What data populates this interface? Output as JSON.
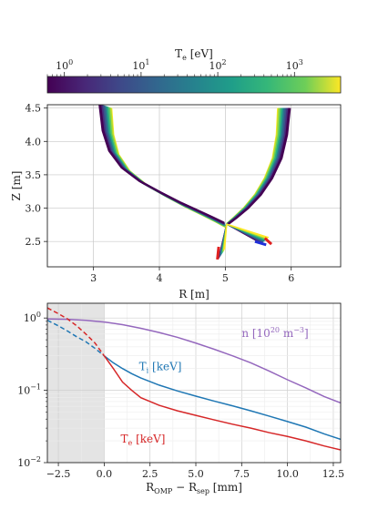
{
  "colorbar": {
    "label": "T$_e$ [eV]",
    "label_main": "T",
    "label_sub": "e",
    "label_unit": " [eV]",
    "scale": "log",
    "range": [
      0.6,
      4000
    ],
    "tick_values": [
      1,
      10,
      100,
      1000
    ],
    "tick_labels": [
      "10",
      "10",
      "10",
      "10"
    ],
    "tick_exponents": [
      "0",
      "1",
      "2",
      "3"
    ],
    "colormap": "viridis"
  },
  "chart_data": [
    {
      "type": "line",
      "name": "grid",
      "xlabel": "R [m]",
      "ylabel": "Z [m]",
      "xlim": [
        2.3,
        6.75
      ],
      "ylim": [
        2.12,
        4.55
      ],
      "x_ticks": [
        3,
        4,
        5,
        6
      ],
      "y_ticks": [
        2.5,
        3.0,
        3.5,
        4.0,
        4.5
      ],
      "x_tick_labels": [
        "3",
        "4",
        "5",
        "6"
      ],
      "y_tick_labels": [
        "2.5",
        "3.0",
        "3.5",
        "4.0",
        "4.5"
      ],
      "grid": true,
      "color_by": "T_e (log scale)",
      "inner_leg": {
        "x": [
          3.27,
          3.3,
          3.38,
          3.55,
          3.8,
          4.1,
          4.4,
          4.65,
          4.85,
          5.0
        ],
        "y": [
          4.5,
          4.1,
          3.8,
          3.55,
          3.35,
          3.18,
          3.02,
          2.9,
          2.8,
          2.72
        ]
      },
      "outer_leg": {
        "x": [
          5.8,
          5.78,
          5.72,
          5.6,
          5.45,
          5.28,
          5.12,
          5.02
        ],
        "y": [
          4.5,
          4.1,
          3.75,
          3.45,
          3.2,
          3.0,
          2.85,
          2.76
        ]
      },
      "targets": [
        {
          "name": "inner target",
          "color": "#e02020",
          "x": [
            4.88,
            4.9
          ],
          "y": [
            2.23,
            2.42
          ]
        },
        {
          "name": "outer target",
          "color": "#1f2fd8",
          "x": [
            5.45,
            5.62
          ],
          "y": [
            2.5,
            2.45
          ]
        },
        {
          "name": "outer target tip",
          "color": "#e02020",
          "x": [
            5.6,
            5.7
          ],
          "y": [
            2.55,
            2.46
          ]
        }
      ]
    },
    {
      "type": "line",
      "name": "profiles",
      "xlabel": "R$_{OMP}$ − R$_{sep}$ [mm]",
      "xlabel_main": "R",
      "xlabel_sub1": "OMP",
      "xlabel_mid": " − R",
      "xlabel_sub2": "sep",
      "xlabel_unit": " [mm]",
      "ylabel": "",
      "xlim": [
        -3.1,
        12.9
      ],
      "ylim": [
        0.01,
        1.6
      ],
      "yscale": "log",
      "x_ticks": [
        -2.5,
        0,
        2.5,
        5,
        7.5,
        10,
        12.5
      ],
      "x_tick_labels": [
        "−2.5",
        "0.0",
        "2.5",
        "5.0",
        "7.5",
        "10.0",
        "12.5"
      ],
      "y_ticks": [
        0.01,
        0.1,
        1
      ],
      "y_tick_labels": [
        "10",
        "10",
        "10"
      ],
      "y_tick_exponents": [
        "−2",
        "−1",
        "0"
      ],
      "grid": true,
      "shaded_region": [
        -3.1,
        0
      ],
      "series": [
        {
          "name": "n [10$^{20}$ m$^{-3}$]",
          "label_main": "n [10",
          "label_sup1": "20",
          "label_mid": " m",
          "label_sup2": "−3",
          "label_end": "]",
          "color": "#9467bd",
          "label_at": [
            7.5,
            0.55
          ],
          "x": [
            -3.1,
            -2,
            -1,
            0,
            1,
            2,
            3,
            4,
            5,
            6,
            7,
            8,
            9,
            10,
            11,
            12,
            12.9
          ],
          "y": [
            0.97,
            0.96,
            0.93,
            0.88,
            0.81,
            0.72,
            0.63,
            0.54,
            0.45,
            0.37,
            0.3,
            0.24,
            0.185,
            0.14,
            0.108,
            0.082,
            0.067
          ]
        },
        {
          "name": "T$_i$ [keV]",
          "label_main": "T",
          "label_sub": "i",
          "label_unit": " [keV]",
          "color": "#1f77b4",
          "label_at": [
            1.9,
            0.19
          ],
          "x": [
            -3.1,
            -2.5,
            -2,
            -1.5,
            -1,
            -0.5,
            0,
            0.5,
            1,
            1.5,
            2,
            3,
            4,
            5,
            6,
            7,
            8,
            9,
            10,
            11,
            12,
            12.9
          ],
          "y": [
            0.93,
            0.78,
            0.66,
            0.55,
            0.47,
            0.38,
            0.3,
            0.24,
            0.2,
            0.17,
            0.148,
            0.118,
            0.098,
            0.083,
            0.071,
            0.061,
            0.052,
            0.044,
            0.037,
            0.031,
            0.025,
            0.021
          ],
          "dashed_below_x": 0
        },
        {
          "name": "T$_e$ [keV]",
          "label_main": "T",
          "label_sub": "e",
          "label_unit": " [keV]",
          "color": "#d62728",
          "label_at": [
            0.9,
            0.019
          ],
          "x": [
            -3.1,
            -2.5,
            -2,
            -1.5,
            -1,
            -0.5,
            0,
            0.5,
            1,
            1.5,
            2,
            3,
            4,
            5,
            6,
            7,
            8,
            9,
            10,
            11,
            12,
            12.9
          ],
          "y": [
            1.38,
            1.15,
            0.97,
            0.78,
            0.6,
            0.45,
            0.3,
            0.2,
            0.13,
            0.1,
            0.079,
            0.062,
            0.052,
            0.045,
            0.039,
            0.034,
            0.03,
            0.026,
            0.023,
            0.02,
            0.017,
            0.015
          ],
          "dashed_below_x": 0
        }
      ]
    }
  ]
}
